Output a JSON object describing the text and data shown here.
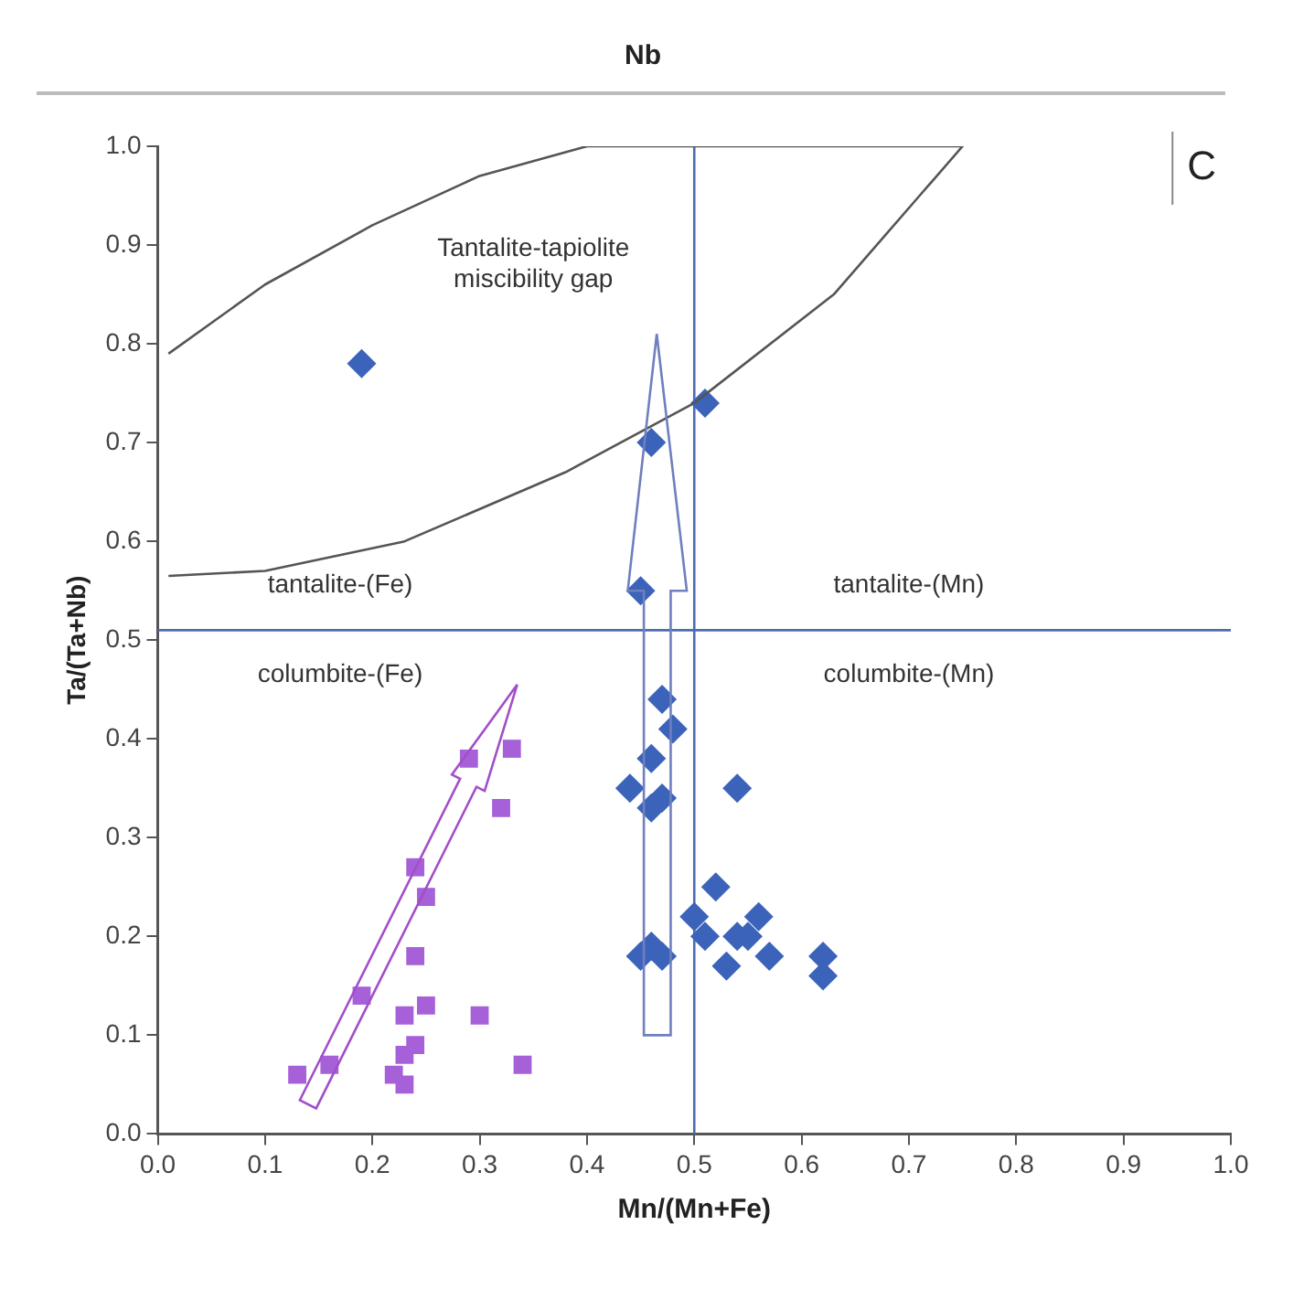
{
  "chart_data": {
    "type": "scatter",
    "title": "Nb",
    "xlabel": "Mn/(Mn+Fe)",
    "ylabel": "Ta/(Ta+Nb)",
    "xlim": [
      0,
      1
    ],
    "ylim": [
      0,
      1
    ],
    "xticks": [
      {
        "value": 0,
        "label": "0.0"
      },
      {
        "value": 0.1,
        "label": "0.1"
      },
      {
        "value": 0.2,
        "label": "0.2"
      },
      {
        "value": 0.3,
        "label": "0.3"
      },
      {
        "value": 0.4,
        "label": "0.4"
      },
      {
        "value": 0.5,
        "label": "0.5"
      },
      {
        "value": 0.6,
        "label": "0.6"
      },
      {
        "value": 0.7,
        "label": "0.7"
      },
      {
        "value": 0.8,
        "label": "0.8"
      },
      {
        "value": 0.9,
        "label": "0.9"
      },
      {
        "value": 1,
        "label": "1.0"
      }
    ],
    "yticks": [
      {
        "value": 0,
        "label": "0.0"
      },
      {
        "value": 0.1,
        "label": "0.1"
      },
      {
        "value": 0.2,
        "label": "0.2"
      },
      {
        "value": 0.3,
        "label": "0.3"
      },
      {
        "value": 0.4,
        "label": "0.4"
      },
      {
        "value": 0.5,
        "label": "0.5"
      },
      {
        "value": 0.6,
        "label": "0.6"
      },
      {
        "value": 0.7,
        "label": "0.7"
      },
      {
        "value": 0.8,
        "label": "0.8"
      },
      {
        "value": 0.9,
        "label": "0.9"
      },
      {
        "value": 1,
        "label": "1.0"
      }
    ],
    "grid": false,
    "legend": false,
    "series": [
      {
        "type": "line",
        "color": "#555555",
        "marker": "none",
        "line_style": "solid",
        "x": [
          0.01,
          0.1,
          0.2,
          0.3,
          0.4,
          0.75,
          0.71,
          0.63,
          0.5,
          0.38,
          0.23,
          0.1,
          0.01
        ],
        "values": [
          0.79,
          0.86,
          0.92,
          0.97,
          1.0,
          1.0,
          0.95,
          0.85,
          0.74,
          0.67,
          0.6,
          0.57,
          0.565
        ]
      },
      {
        "color": "#3b63b9",
        "marker": "diamond",
        "x": [
          0.19,
          0.51,
          0.46,
          0.45,
          0.47,
          0.48,
          0.46,
          0.44,
          0.47,
          0.46,
          0.54,
          0.52,
          0.46,
          0.47,
          0.45,
          0.5,
          0.51,
          0.53,
          0.54,
          0.56,
          0.57,
          0.62,
          0.62,
          0.55
        ],
        "values": [
          0.78,
          0.74,
          0.7,
          0.55,
          0.44,
          0.41,
          0.38,
          0.35,
          0.34,
          0.33,
          0.35,
          0.25,
          0.19,
          0.18,
          0.18,
          0.22,
          0.2,
          0.17,
          0.2,
          0.22,
          0.18,
          0.18,
          0.16,
          0.2
        ]
      },
      {
        "color": "#a661d8",
        "marker": "square",
        "x": [
          0.13,
          0.16,
          0.19,
          0.24,
          0.25,
          0.24,
          0.23,
          0.25,
          0.24,
          0.23,
          0.22,
          0.23,
          0.29,
          0.33,
          0.32,
          0.3,
          0.34
        ],
        "values": [
          0.06,
          0.07,
          0.14,
          0.27,
          0.24,
          0.18,
          0.12,
          0.13,
          0.09,
          0.08,
          0.06,
          0.05,
          0.38,
          0.39,
          0.33,
          0.12,
          0.07
        ]
      }
    ],
    "ref_lines": [
      {
        "axis": "x",
        "value": 0.5,
        "color": "#4a6cb3"
      },
      {
        "axis": "y",
        "value": 0.51,
        "color": "#4a6cb3"
      }
    ],
    "annotations": [
      "Tantalite-tapiolite miscibility gap",
      "tantalite-(Fe)",
      "tantalite-(Mn)",
      "columbite-(Fe)",
      "columbite-(Mn)",
      "C"
    ]
  }
}
